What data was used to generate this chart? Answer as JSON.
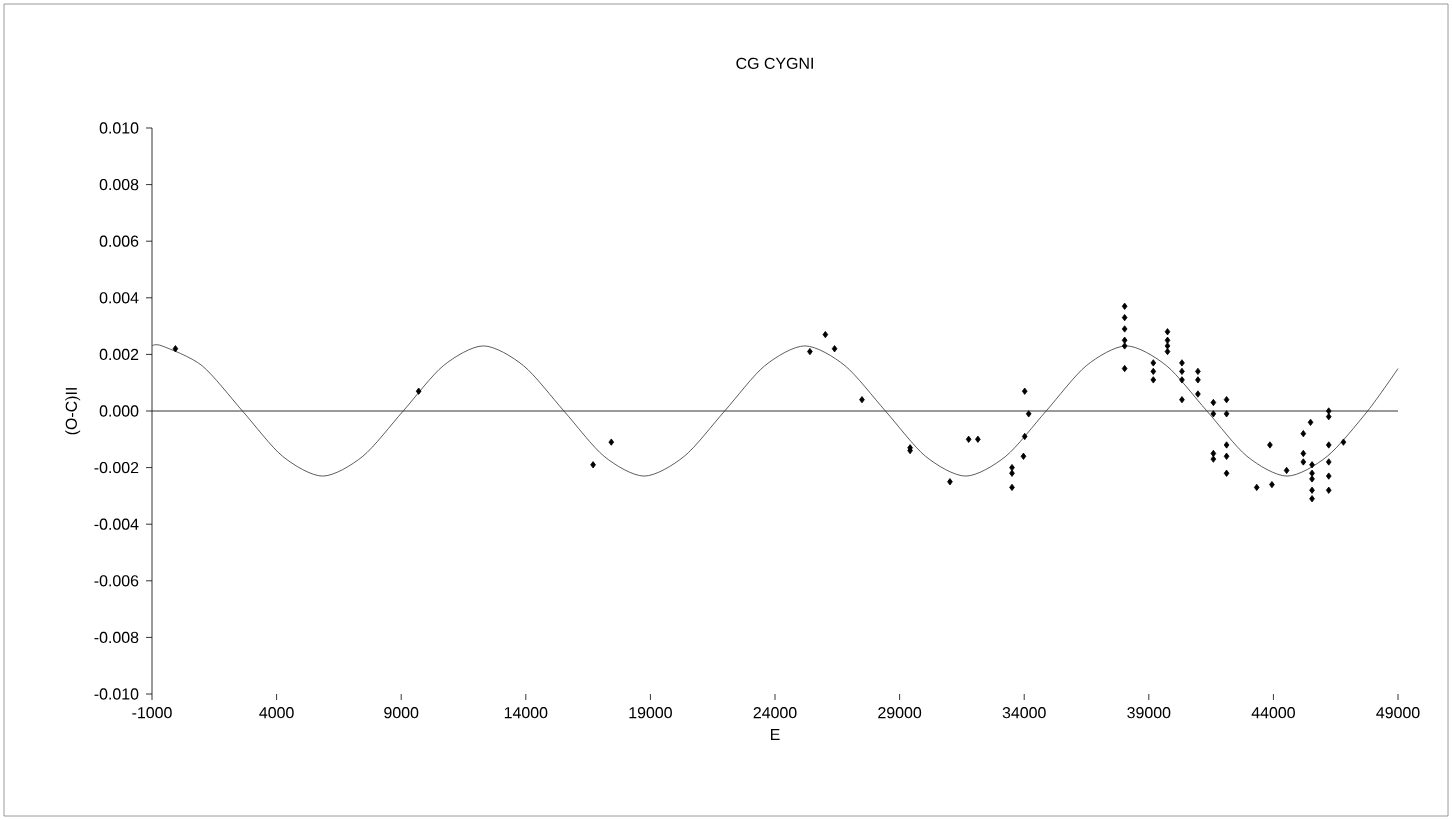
{
  "chart_data": {
    "type": "scatter",
    "title": "CG CYGNI",
    "xlabel": "E",
    "ylabel": "(O-C)II",
    "xlim": [
      -1000,
      49000
    ],
    "xticks": [
      -1000,
      4000,
      9000,
      14000,
      19000,
      24000,
      29000,
      34000,
      39000,
      44000,
      49000
    ],
    "ylim": [
      -0.01,
      0.01
    ],
    "yticks": [
      {
        "value": -0.01,
        "label": "-0.010"
      },
      {
        "value": -0.008,
        "label": "-0.008"
      },
      {
        "value": -0.006,
        "label": "-0.006"
      },
      {
        "value": -0.004,
        "label": "-0.004"
      },
      {
        "value": -0.002,
        "label": "-0.002"
      },
      {
        "value": 0,
        "label": "0.000"
      },
      {
        "value": 0.002,
        "label": "0.002"
      },
      {
        "value": 0.004,
        "label": "0.004"
      },
      {
        "value": 0.006,
        "label": "0.006"
      },
      {
        "value": 0.008,
        "label": "0.008"
      },
      {
        "value": 0.01,
        "label": "0.010"
      }
    ],
    "series": [
      {
        "color": "#000000",
        "marker": "diamond",
        "x": [
          -60,
          9700,
          16700,
          17430,
          25400,
          26020,
          26390,
          27490,
          29420,
          29420,
          31020,
          31770,
          32140,
          33510,
          33510,
          33510,
          34020,
          34180,
          34020,
          33970,
          38030,
          38030,
          38030,
          38030,
          38030,
          38030,
          39180,
          39180,
          39180,
          39750,
          39750,
          39750,
          39750,
          40330,
          40330,
          40330,
          40330,
          40970,
          40970,
          40970,
          41590,
          41590,
          41590,
          41590,
          42120,
          42120,
          42120,
          42120,
          42120,
          43330,
          43860,
          43940,
          44530,
          45200,
          45200,
          45200,
          45490,
          45550,
          45550,
          45550,
          45550,
          45550,
          46220,
          46220,
          46220,
          46220,
          46220,
          46220,
          46810
        ],
        "values": [
          0.0022,
          0.0007,
          -0.0019,
          -0.0011,
          0.0021,
          0.0027,
          0.0022,
          0.0004,
          -0.0013,
          -0.0014,
          -0.0025,
          -0.001,
          -0.001,
          -0.002,
          -0.0022,
          -0.0027,
          0.0007,
          -0.0001,
          -0.0009,
          -0.0016,
          0.0037,
          0.0033,
          0.0029,
          0.0025,
          0.0023,
          0.0015,
          0.0017,
          0.0014,
          0.0011,
          0.0028,
          0.0025,
          0.0023,
          0.0021,
          0.0017,
          0.0014,
          0.0011,
          0.0004,
          0.0014,
          0.0011,
          0.0006,
          0.0003,
          -0.0001,
          -0.0015,
          -0.0017,
          0.0004,
          -0.0001,
          -0.0012,
          -0.0016,
          -0.0022,
          -0.0027,
          -0.0012,
          -0.0026,
          -0.0021,
          -0.0008,
          -0.0015,
          -0.0018,
          -0.0004,
          -0.0019,
          -0.0022,
          -0.0024,
          -0.0028,
          -0.0031,
          0.0,
          -0.0002,
          -0.0012,
          -0.0018,
          -0.0023,
          -0.0028,
          -0.0011
        ]
      },
      {
        "type": "line",
        "color": "#333333",
        "marker": "none",
        "line_style": "solid",
        "x": [
          -1000,
          -600,
          1010,
          2630,
          4240,
          5850,
          7460,
          9080,
          10690,
          12300,
          13910,
          15530,
          17140,
          18750,
          20360,
          21980,
          23590,
          25200,
          26810,
          28430,
          30040,
          31650,
          33260,
          34880,
          36490,
          38100,
          39710,
          41330,
          42940,
          44550,
          46160,
          47780,
          49000
        ],
        "values": [
          0.0023,
          0.0023,
          0.0016,
          0,
          -0.0016,
          -0.0023,
          -0.0016,
          0,
          0.0016,
          0.0023,
          0.0016,
          0,
          -0.0016,
          -0.0023,
          -0.0016,
          0,
          0.0016,
          0.0023,
          0.0016,
          0,
          -0.0016,
          -0.0023,
          -0.0016,
          0,
          0.0016,
          0.0023,
          0.0016,
          0,
          -0.0016,
          -0.0023,
          -0.0016,
          0,
          0.0015
        ]
      }
    ]
  }
}
